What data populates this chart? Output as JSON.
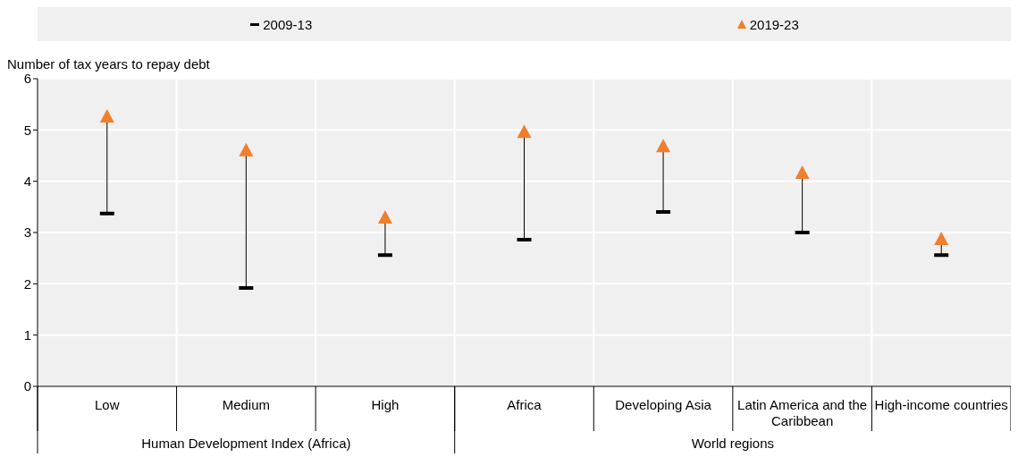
{
  "chart_data": {
    "type": "scatter",
    "ylabel": "Number of tax years to repay debt",
    "categories": [
      "Low",
      "Medium",
      "High",
      "Africa",
      "Developing Asia",
      "Latin America and the Caribbean",
      "High-income countries"
    ],
    "series": [
      {
        "name": "2009-13",
        "color": "#000000",
        "values": [
          3.37,
          1.92,
          2.56,
          2.86,
          3.4,
          3.0,
          2.56
        ]
      },
      {
        "name": "2019-23",
        "color": "#f07f2c",
        "marker": "triangle",
        "values": [
          5.25,
          4.59,
          3.28,
          4.95,
          4.67,
          4.15,
          2.86
        ]
      }
    ],
    "ylim": [
      0,
      6
    ],
    "yticks": [
      0,
      1,
      2,
      3,
      4,
      5,
      6
    ],
    "grid": "y",
    "legend": "top",
    "annotations": [
      "Human Development Index (Africa)",
      "World regions"
    ]
  }
}
